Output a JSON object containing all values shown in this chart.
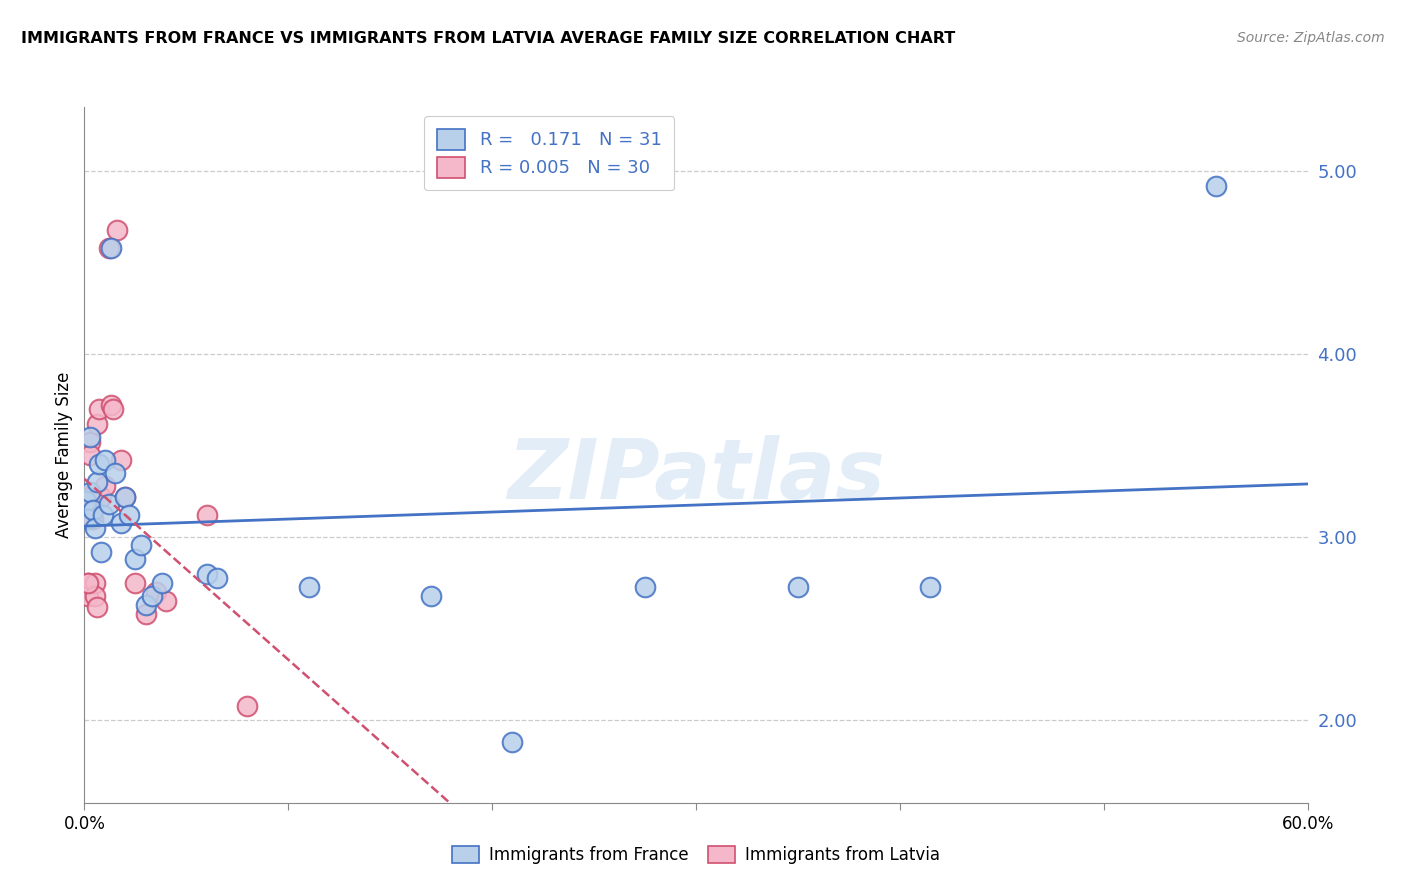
{
  "title": "IMMIGRANTS FROM FRANCE VS IMMIGRANTS FROM LATVIA AVERAGE FAMILY SIZE CORRELATION CHART",
  "source": "Source: ZipAtlas.com",
  "ylabel": "Average Family Size",
  "right_yticks": [
    2.0,
    3.0,
    4.0,
    5.0
  ],
  "xlim": [
    0.0,
    0.6
  ],
  "ylim": [
    1.55,
    5.35
  ],
  "france_R": "0.171",
  "france_N": "31",
  "latvia_R": "0.005",
  "latvia_N": "30",
  "france_color": "#b8d0ea",
  "france_line_color": "#4472c4",
  "latvia_color": "#f4b8ca",
  "latvia_line_color": "#d05070",
  "watermark": "ZIPatlas",
  "france_points": [
    [
      0.001,
      3.2
    ],
    [
      0.002,
      3.1
    ],
    [
      0.003,
      3.25
    ],
    [
      0.004,
      3.15
    ],
    [
      0.005,
      3.05
    ],
    [
      0.006,
      3.3
    ],
    [
      0.007,
      3.4
    ],
    [
      0.008,
      2.92
    ],
    [
      0.009,
      3.12
    ],
    [
      0.01,
      3.42
    ],
    [
      0.012,
      3.18
    ],
    [
      0.013,
      4.58
    ],
    [
      0.015,
      3.35
    ],
    [
      0.018,
      3.08
    ],
    [
      0.02,
      3.22
    ],
    [
      0.022,
      3.12
    ],
    [
      0.025,
      2.88
    ],
    [
      0.028,
      2.96
    ],
    [
      0.03,
      2.63
    ],
    [
      0.033,
      2.68
    ],
    [
      0.038,
      2.75
    ],
    [
      0.06,
      2.8
    ],
    [
      0.065,
      2.78
    ],
    [
      0.11,
      2.73
    ],
    [
      0.17,
      2.68
    ],
    [
      0.21,
      1.88
    ],
    [
      0.275,
      2.73
    ],
    [
      0.35,
      2.73
    ],
    [
      0.415,
      2.73
    ],
    [
      0.555,
      4.92
    ],
    [
      0.003,
      3.55
    ]
  ],
  "latvia_points": [
    [
      0.001,
      3.22
    ],
    [
      0.001,
      3.18
    ],
    [
      0.002,
      3.12
    ],
    [
      0.002,
      2.75
    ],
    [
      0.002,
      2.68
    ],
    [
      0.003,
      3.52
    ],
    [
      0.003,
      3.45
    ],
    [
      0.003,
      3.22
    ],
    [
      0.004,
      3.2
    ],
    [
      0.004,
      3.1
    ],
    [
      0.005,
      2.75
    ],
    [
      0.005,
      2.68
    ],
    [
      0.006,
      2.62
    ],
    [
      0.006,
      3.62
    ],
    [
      0.007,
      3.7
    ],
    [
      0.008,
      3.22
    ],
    [
      0.01,
      3.28
    ],
    [
      0.012,
      4.58
    ],
    [
      0.013,
      3.72
    ],
    [
      0.014,
      3.7
    ],
    [
      0.016,
      4.68
    ],
    [
      0.018,
      3.42
    ],
    [
      0.02,
      3.22
    ],
    [
      0.025,
      2.75
    ],
    [
      0.03,
      2.58
    ],
    [
      0.035,
      2.7
    ],
    [
      0.04,
      2.65
    ],
    [
      0.06,
      3.12
    ],
    [
      0.08,
      2.08
    ],
    [
      0.002,
      2.75
    ]
  ],
  "x_ticks": [
    0.0,
    0.1,
    0.2,
    0.3,
    0.4,
    0.5,
    0.6
  ],
  "x_tick_labels_show": [
    true,
    false,
    false,
    false,
    false,
    false,
    true
  ]
}
